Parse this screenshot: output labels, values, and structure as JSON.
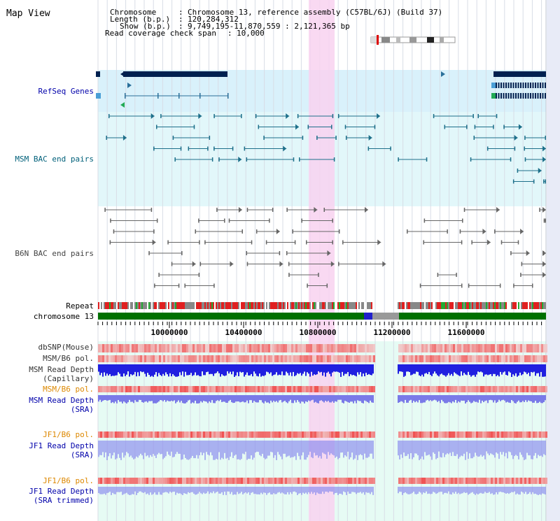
{
  "title": "Map View",
  "info": [
    {
      "key": "Chromosome",
      "value": "Chromosome 13, reference assembly (C57BL/6J) (Build 37)"
    },
    {
      "key": "Length (b.p.)",
      "value": "120,284,312"
    },
    {
      "key": "Show (b.p.)",
      "value": "9,749,195-11,870,559 : 2,121,365 bp"
    },
    {
      "key": "Read coverage check span",
      "value": "10,000"
    }
  ],
  "scale_ticks": [
    "10000000",
    "10400000",
    "10800000",
    "11200000",
    "11600000"
  ],
  "tracks": {
    "refseq": "RefSeq Genes",
    "msm_bac": "MSM BAC end pairs",
    "b6n_bac": "B6N BAC end pairs",
    "repeat": "Repeat",
    "chromosome": "chromosome 13",
    "dbsnp": "dbSNP(Mouse)",
    "msm_b6_pol_1": "MSM/B6 pol.",
    "msm_depth_cap_1": "MSM Read Depth",
    "msm_depth_cap_2": "(Capillary)",
    "msm_b6_pol_2": "MSM/B6 pol.",
    "msm_depth_sra_1": "MSM Read Depth",
    "msm_depth_sra_2": "(SRA)",
    "jf1_b6_pol_1": "JF1/B6 pol.",
    "jf1_depth_sra_1": "JF1 Read Depth",
    "jf1_depth_sra_2": "(SRA)",
    "jf1_b6_pol_2": "JF1/B6 pol.",
    "jf1_depth_trim_1": "JF1 Read Depth",
    "jf1_depth_trim_2": "(SRA trimmed)"
  },
  "colors": {
    "label_default": "#000000",
    "label_blue": "#0000aa",
    "label_orange": "#dd8800",
    "label_teal": "#00607a",
    "refseq_bg": "#d9f1fb",
    "bac_bg": "#e3f8fb",
    "highlight": "#f8d2f0",
    "chromosome_bar": "#007000",
    "gene": "#00204f",
    "snp": "#f06060",
    "depth": "#2020e0"
  }
}
